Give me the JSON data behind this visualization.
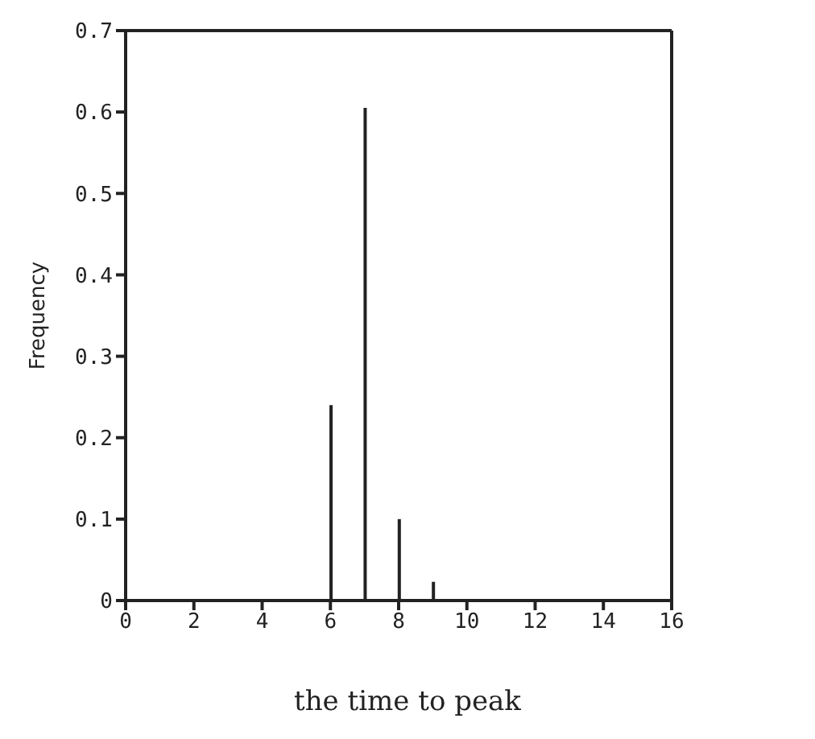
{
  "chart_data": {
    "type": "bar",
    "xlabel": "the time to peak",
    "ylabel": "Frequency",
    "x": [
      6,
      7,
      8,
      9
    ],
    "values": [
      0.24,
      0.605,
      0.1,
      0.023
    ],
    "color": "#222222",
    "xlim": [
      0,
      16
    ],
    "xticks": [
      0,
      2,
      4,
      6,
      8,
      10,
      12,
      14,
      16
    ],
    "ylim": [
      0,
      0.7
    ],
    "yticks": [
      0,
      0.1,
      0.2,
      0.3,
      0.4,
      0.5,
      0.6,
      0.7
    ],
    "grid": false
  }
}
